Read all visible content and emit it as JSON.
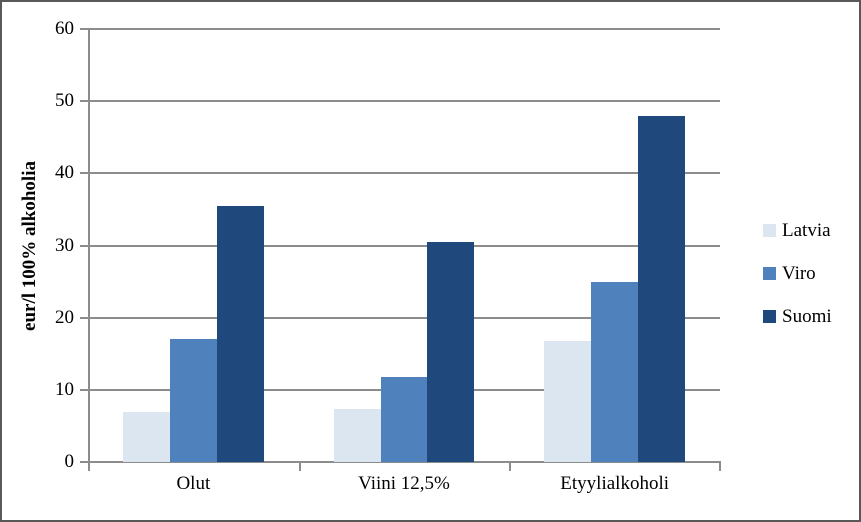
{
  "chart_data": {
    "type": "bar",
    "title": "",
    "categories": [
      "Olut",
      "Viini 12,5%",
      "Etyylialkoholi"
    ],
    "series": [
      {
        "name": "Latvia",
        "color": "#DCE6F1",
        "values": [
          6.9,
          7.4,
          16.8
        ]
      },
      {
        "name": "Viro",
        "color": "#4F81BD",
        "values": [
          17.0,
          11.8,
          25.0
        ]
      },
      {
        "name": "Suomi",
        "color": "#1F497D",
        "values": [
          35.5,
          30.5,
          47.9
        ]
      }
    ],
    "xlabel": "",
    "ylabel": "eur/l 100% alkoholia",
    "ylim": [
      0,
      60
    ],
    "ytick_step": 10,
    "yticks": [
      0,
      10,
      20,
      30,
      40,
      50,
      60
    ],
    "grid": true,
    "legend_position": "right",
    "gap_width_ratio": 1.5,
    "colors": {
      "gridline": "#8c8c8c",
      "axis": "#8c8c8c",
      "text": "#000000",
      "background": "#ffffff",
      "frame_border": "#595959"
    }
  }
}
